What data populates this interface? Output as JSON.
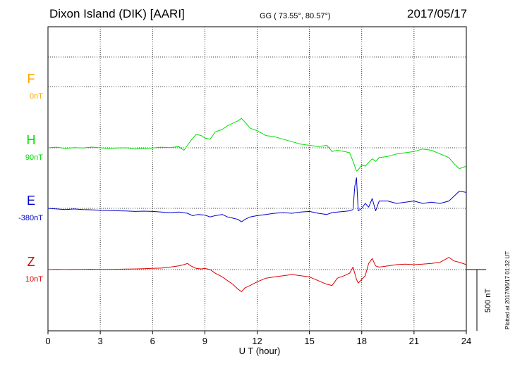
{
  "header": {
    "station": "Dixon Island (DIK)  [AARI]",
    "coords": "GG ( 73.55°,  80.57°)",
    "date": "2017/05/17"
  },
  "footer_note": "Plotted at 2017/06/17 01:32 UT",
  "scale_bar_label": "500 nT",
  "colors": {
    "F": "#ffa500",
    "H": "#00dd00",
    "E": "#0000cc",
    "Z": "#dd0000"
  },
  "chart_data": {
    "type": "line",
    "title": "Dixon Island (DIK)  [AARI]",
    "xlabel": "U T (hour)",
    "ylabel": "",
    "xlim": [
      0,
      24
    ],
    "x_ticks": [
      0,
      3,
      6,
      9,
      12,
      15,
      18,
      21,
      24
    ],
    "x_tick_labels": [
      "0",
      "3",
      "6",
      "9",
      "12",
      "15",
      "18",
      "21",
      "24"
    ],
    "scale_bar_nT": 500,
    "grid": true,
    "series": [
      {
        "name": "F",
        "baseline_label": "0nT",
        "x": [],
        "values": []
      },
      {
        "name": "H",
        "baseline_label": "90nT",
        "x": [
          0,
          0.5,
          1,
          1.5,
          2,
          2.5,
          3,
          3.5,
          4,
          4.5,
          5,
          5.5,
          6,
          6.5,
          7,
          7.5,
          7.8,
          8,
          8.2,
          8.5,
          8.8,
          9,
          9.3,
          9.6,
          10,
          10.3,
          10.6,
          10.9,
          11.1,
          11.3,
          11.6,
          12,
          12.5,
          13,
          13.5,
          14,
          14.5,
          15,
          15.5,
          16,
          16.3,
          16.6,
          17,
          17.3,
          17.5,
          17.7,
          17.8,
          18,
          18.2,
          18.4,
          18.6,
          18.8,
          19,
          19.5,
          20,
          20.5,
          21,
          21.5,
          22,
          22.5,
          23,
          23.3,
          23.6,
          24
        ],
        "values": [
          90,
          95,
          85,
          92,
          88,
          96,
          90,
          85,
          88,
          90,
          80,
          85,
          88,
          95,
          92,
          100,
          70,
          110,
          150,
          200,
          190,
          170,
          160,
          220,
          240,
          270,
          290,
          310,
          330,
          300,
          250,
          230,
          190,
          180,
          160,
          140,
          120,
          110,
          100,
          110,
          60,
          70,
          60,
          50,
          -20,
          -100,
          -90,
          -50,
          -60,
          -30,
          0,
          -20,
          10,
          20,
          40,
          50,
          60,
          80,
          70,
          40,
          10,
          -40,
          -80,
          -60
        ]
      },
      {
        "name": "E",
        "baseline_label": "-380nT",
        "x": [
          0,
          0.5,
          1,
          1.5,
          2,
          2.5,
          3,
          3.5,
          4,
          4.5,
          5,
          5.5,
          6,
          6.5,
          7,
          7.5,
          8,
          8.3,
          8.6,
          9,
          9.3,
          9.6,
          10,
          10.3,
          10.6,
          10.9,
          11.1,
          11.3,
          11.6,
          12,
          12.5,
          13,
          13.5,
          14,
          14.5,
          15,
          15.5,
          16,
          16.3,
          16.6,
          17,
          17.3,
          17.5,
          17.6,
          17.7,
          17.8,
          18,
          18.2,
          18.4,
          18.6,
          18.8,
          19,
          19.5,
          20,
          20.5,
          21,
          21.5,
          22,
          22.5,
          23,
          23.3,
          23.6,
          24
        ],
        "values": [
          -380,
          -385,
          -390,
          -385,
          -390,
          -392,
          -395,
          -398,
          -400,
          -402,
          -405,
          -403,
          -405,
          -410,
          -415,
          -410,
          -420,
          -440,
          -430,
          -435,
          -450,
          -440,
          -430,
          -450,
          -460,
          -470,
          -490,
          -470,
          -450,
          -440,
          -430,
          -420,
          -415,
          -420,
          -410,
          -405,
          -420,
          -430,
          -415,
          -410,
          -405,
          -400,
          -390,
          -200,
          -130,
          -400,
          -380,
          -340,
          -370,
          -300,
          -400,
          -320,
          -320,
          -340,
          -330,
          -320,
          -340,
          -330,
          -340,
          -320,
          -280,
          -240,
          -250
        ]
      },
      {
        "name": "Z",
        "baseline_label": "10nT",
        "x": [
          0,
          0.5,
          1,
          1.5,
          2,
          2.5,
          3,
          3.5,
          4,
          4.5,
          5,
          5.5,
          6,
          6.5,
          7,
          7.5,
          7.8,
          8,
          8.2,
          8.5,
          8.8,
          9,
          9.3,
          9.6,
          10,
          10.3,
          10.6,
          10.9,
          11.1,
          11.3,
          11.6,
          12,
          12.5,
          13,
          13.5,
          14,
          14.5,
          15,
          15.5,
          16,
          16.3,
          16.6,
          17,
          17.3,
          17.5,
          17.7,
          17.8,
          18,
          18.2,
          18.4,
          18.6,
          18.8,
          19,
          19.5,
          20,
          20.5,
          21,
          21.5,
          22,
          22.5,
          23,
          23.3,
          23.6,
          24
        ],
        "values": [
          10,
          12,
          10,
          11,
          12,
          13,
          12,
          12,
          13,
          14,
          15,
          17,
          20,
          22,
          30,
          40,
          50,
          60,
          40,
          20,
          15,
          20,
          10,
          -20,
          -50,
          -80,
          -110,
          -150,
          -170,
          -140,
          -120,
          -90,
          -60,
          -50,
          -40,
          -30,
          -40,
          -50,
          -80,
          -110,
          -120,
          -60,
          -40,
          -20,
          30,
          -70,
          -100,
          -70,
          -40,
          60,
          100,
          40,
          30,
          40,
          50,
          55,
          50,
          55,
          60,
          70,
          110,
          80,
          70,
          50
        ]
      }
    ]
  }
}
